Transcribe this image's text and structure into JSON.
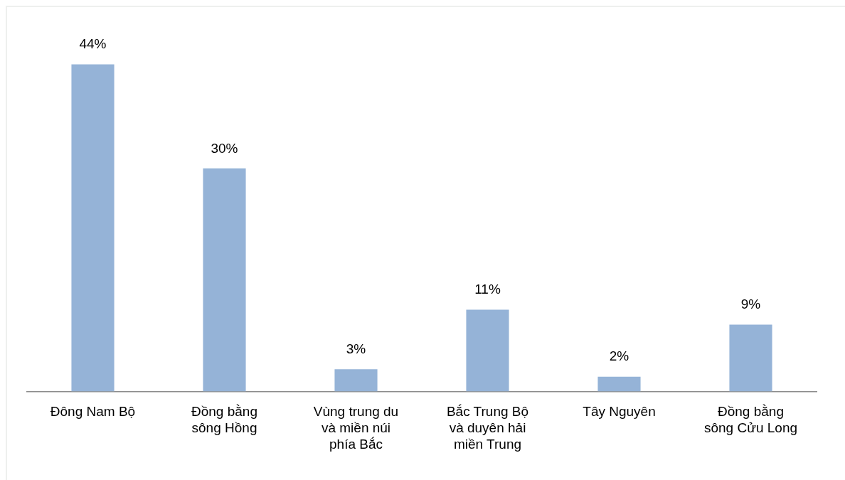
{
  "chart_data": {
    "type": "bar",
    "categories": [
      "Đông Nam Bộ",
      "Đồng bằng sông Hồng",
      "Vùng trung du và miền núi phía Bắc",
      "Bắc Trung Bộ và duyên hải miền Trung",
      "Tây Nguyên",
      "Đồng bằng sông Cửu Long"
    ],
    "values": [
      44,
      30,
      3,
      11,
      2,
      9
    ],
    "value_labels": [
      "44%",
      "30%",
      "3%",
      "11%",
      "2%",
      "9%"
    ],
    "color": "#95b3d7",
    "grid": false,
    "legend": false
  }
}
